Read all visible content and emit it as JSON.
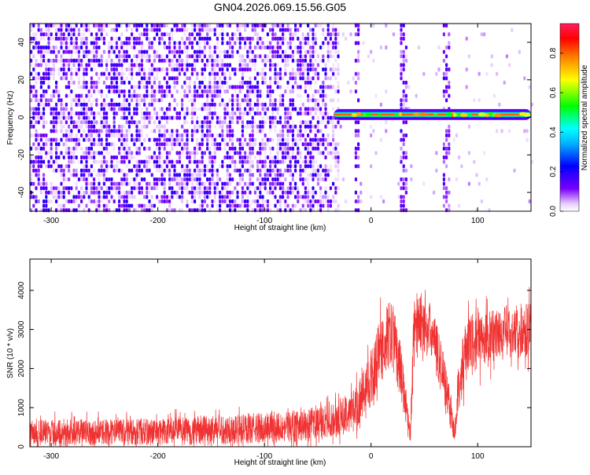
{
  "figure_title": "GN04.2026.069.15.56.G05",
  "colors": {
    "snr_line": "#f03232",
    "axis": "#000000",
    "background": "#ffffff"
  },
  "chart_data": [
    {
      "type": "heatmap",
      "xlabel": "Height of straight line (km)",
      "ylabel": "Frequency (Hz)",
      "xlim": [
        -320,
        150
      ],
      "ylim": [
        -50,
        50
      ],
      "xticks": [
        -300,
        -200,
        -100,
        0,
        100
      ],
      "xtick_labels": [
        "-300",
        "-200",
        "-100",
        "0",
        "100"
      ],
      "yticks": [
        -40,
        -20,
        0,
        20,
        40
      ],
      "ytick_labels": [
        "-40",
        "-20",
        "0",
        "20",
        "40"
      ],
      "colorbar": {
        "label": "Normalized spectral amplitude",
        "range": [
          0,
          0.95
        ],
        "ticks": [
          0,
          0.2,
          0.4,
          0.6,
          0.8
        ],
        "tick_labels": [
          "0.0",
          "0.2",
          "0.4",
          "0.6",
          "0.8"
        ],
        "colormap": "rainbow"
      },
      "features": {
        "noise_region_x": [
          -320,
          -30
        ],
        "noise_amplitude": [
          0.05,
          0.2
        ],
        "signal_start_x": -35,
        "signal_frequency_hz": 1.5,
        "signal_amplitude_peak": 0.85,
        "vertical_bands_x": [
          -14,
          30,
          70
        ]
      }
    },
    {
      "type": "line",
      "xlabel": "Height of straight line (km)",
      "ylabel": "SNR (10 * v/v)",
      "xlim": [
        -320,
        150
      ],
      "ylim": [
        0,
        4800
      ],
      "xticks": [
        -300,
        -200,
        -100,
        0,
        100
      ],
      "xtick_labels": [
        "-300",
        "-200",
        "-100",
        "0",
        "100"
      ],
      "yticks": [
        0,
        1000,
        2000,
        3000,
        4000
      ],
      "ytick_labels": [
        "0",
        "1000",
        "2000",
        "3000",
        "4000"
      ],
      "envelope": {
        "x": [
          -320,
          -250,
          -200,
          -150,
          -100,
          -60,
          -30,
          -15,
          0,
          10,
          20,
          28,
          33,
          37,
          40,
          45,
          55,
          65,
          72,
          78,
          82,
          90,
          100,
          120,
          150
        ],
        "base": [
          350,
          380,
          380,
          420,
          480,
          550,
          700,
          1000,
          1700,
          2600,
          2900,
          1900,
          1000,
          300,
          2800,
          3200,
          3000,
          2200,
          1300,
          300,
          1500,
          2600,
          2700,
          2900,
          3000
        ],
        "spread": [
          350,
          330,
          350,
          380,
          400,
          420,
          450,
          550,
          700,
          900,
          900,
          700,
          500,
          200,
          900,
          800,
          700,
          700,
          600,
          200,
          700,
          750,
          750,
          700,
          700
        ]
      }
    }
  ]
}
